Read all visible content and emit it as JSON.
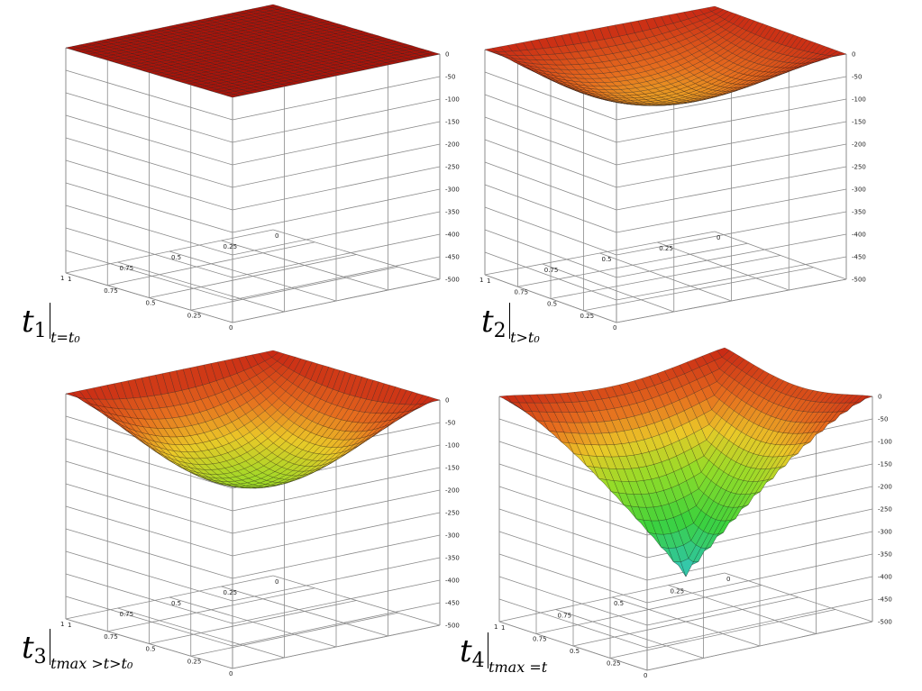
{
  "chart_data": [
    {
      "type": "surface",
      "label": {
        "main": "t",
        "index": "1",
        "condition": "t=t₀"
      },
      "x_ticks": [
        "1",
        "0.75",
        "0.5",
        "0.25",
        "0"
      ],
      "y_ticks": [
        "1",
        "0.75",
        "0.5",
        "0.25",
        "0"
      ],
      "z_ticks": [
        "0",
        "-50",
        "-100",
        "-150",
        "-200",
        "-250",
        "-300",
        "-350",
        "-400",
        "-450",
        "-500"
      ],
      "zlim": [
        -500,
        0
      ],
      "depth_at_center": 0,
      "shape": "flat"
    },
    {
      "type": "surface",
      "label": {
        "main": "t",
        "index": "2",
        "condition": "t>t₀"
      },
      "x_ticks": [
        "1",
        "0.75",
        "0.5",
        "0.25",
        "0"
      ],
      "y_ticks": [
        "1",
        "0.75",
        "0.5",
        "0.25",
        "0"
      ],
      "z_ticks": [
        "0",
        "-50",
        "-100",
        "-150",
        "-200",
        "-250",
        "-300",
        "-350",
        "-400",
        "-450",
        "-500"
      ],
      "zlim": [
        -500,
        0
      ],
      "depth_at_center": -105,
      "shape": "basin"
    },
    {
      "type": "surface",
      "label": {
        "main": "t",
        "index": "3",
        "condition": "tmax >t>t₀"
      },
      "x_ticks": [
        "1",
        "0.75",
        "0.5",
        "0.25",
        "0"
      ],
      "y_ticks": [
        "1",
        "0.75",
        "0.5",
        "0.25",
        "0"
      ],
      "z_ticks": [
        "0",
        "-50",
        "-100",
        "-150",
        "-200",
        "-250",
        "-300",
        "-350",
        "-400",
        "-450",
        "-500"
      ],
      "zlim": [
        -500,
        0
      ],
      "depth_at_center": -195,
      "shape": "basin"
    },
    {
      "type": "surface",
      "label": {
        "main": "t",
        "index": "4",
        "condition": "tmax =t"
      },
      "x_ticks": [
        "1",
        "0.75",
        "0.5",
        "0.25",
        "0"
      ],
      "y_ticks": [
        "1",
        "0.75",
        "0.5",
        "0.25",
        "0"
      ],
      "z_ticks": [
        "0",
        "-50",
        "-100",
        "-150",
        "-200",
        "-250",
        "-300",
        "-350",
        "-400",
        "-450",
        "-500"
      ],
      "zlim": [
        -500,
        0
      ],
      "depth_at_center": -400,
      "shape": "cone"
    }
  ]
}
